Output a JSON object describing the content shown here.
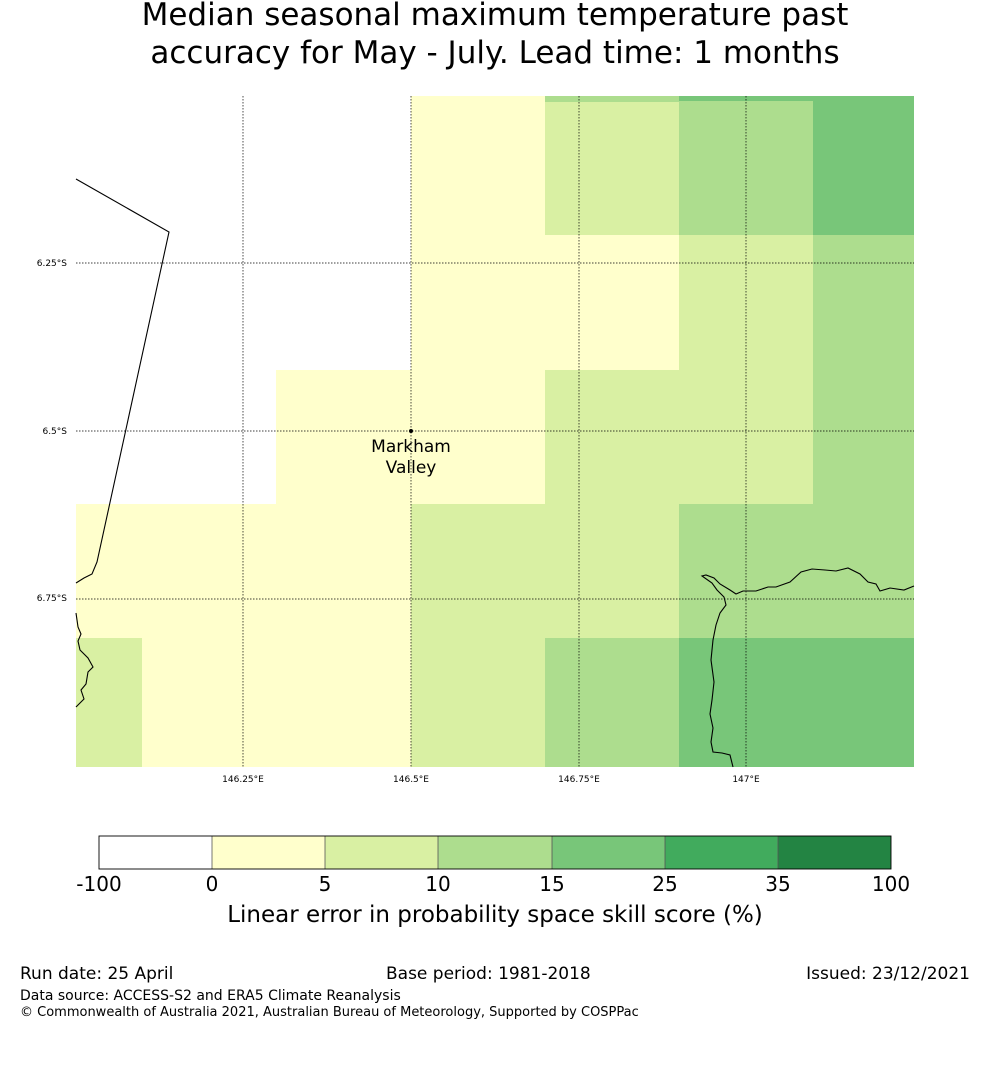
{
  "title": {
    "line1": "Median seasonal maximum temperature past",
    "line2": "accuracy for May - July. Lead time: 1 months"
  },
  "map": {
    "lat_ticks": [
      "6.25°S",
      "6.5°S",
      "6.75°S"
    ],
    "lon_ticks": [
      "146.25°E",
      "146.5°E",
      "146.75°E",
      "147°E"
    ],
    "place_label_line1": "Markham",
    "place_label_line2": "Valley"
  },
  "colorbar": {
    "title": "Linear error in probability space skill score (%)",
    "bounds": [
      "-100",
      "0",
      "5",
      "10",
      "15",
      "25",
      "35",
      "100"
    ],
    "colors": [
      "#ffffff",
      "#ffffcc",
      "#d9f0a3",
      "#addd8e",
      "#78c679",
      "#41ab5d",
      "#238443"
    ]
  },
  "footer": {
    "run_date": "Run date: 25 April",
    "base_period": "Base period: 1981-2018",
    "issued": "Issued: 23/12/2021",
    "data_source": "Data source: ACCESS-S2 and ERA5 Climate Reanalysis",
    "copyright": "© Commonwealth of Australia 2021, Australian Bureau of Meteorology, Supported by COSPPac"
  }
}
